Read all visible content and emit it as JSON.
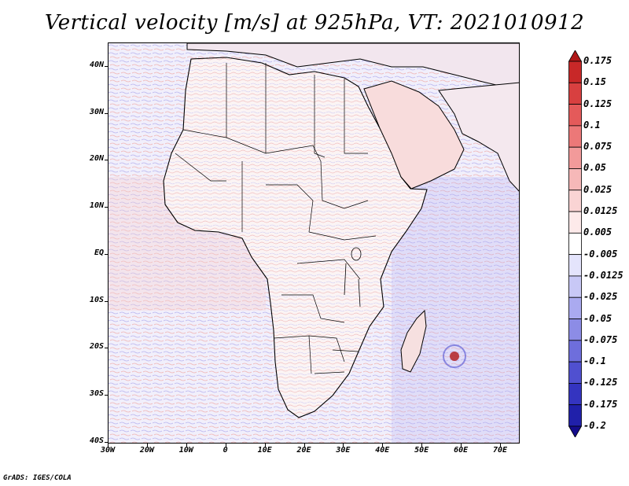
{
  "title": "Vertical velocity [m/s] at 925hPa, VT: 2021010912",
  "credit": "GrADS: IGES/COLA",
  "map": {
    "region": "Africa and surrounding oceans",
    "lon_range": [
      -30,
      75
    ],
    "lat_range": [
      -40,
      45
    ],
    "y_ticks": [
      "40N",
      "30N",
      "20N",
      "10N",
      "EQ",
      "10S",
      "20S",
      "30S",
      "40S"
    ],
    "x_ticks": [
      "30W",
      "20W",
      "10W",
      "0",
      "10E",
      "20E",
      "30E",
      "40E",
      "50E",
      "60E",
      "70E"
    ]
  },
  "colorbar": {
    "levels": [
      "0.175",
      "0.15",
      "0.125",
      "0.1",
      "0.075",
      "0.05",
      "0.025",
      "0.0125",
      "0.005",
      "-0.005",
      "-0.0125",
      "-0.025",
      "-0.05",
      "-0.075",
      "-0.1",
      "-0.125",
      "-0.175",
      "-0.2"
    ],
    "colors": [
      "#b01818",
      "#c82828",
      "#d84040",
      "#e45a5a",
      "#ec7878",
      "#f29a9a",
      "#f6b8b8",
      "#fad4d4",
      "#fdeaea",
      "#ffffff",
      "#e4e4fc",
      "#c8c8f6",
      "#aaaaf0",
      "#8c8ce6",
      "#6e6edc",
      "#5050d0",
      "#3434c0",
      "#2020aa",
      "#140c8c"
    ]
  }
}
